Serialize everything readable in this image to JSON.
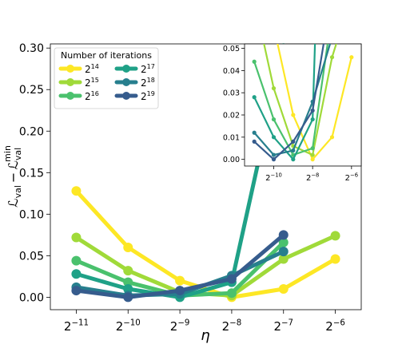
{
  "chart_data": [
    {
      "type": "line",
      "title": "",
      "xlabel": "η",
      "ylabel_main": "ℒ",
      "ylabel_main_sub": "val",
      "ylabel_minus": "−",
      "ylabel_second": "ℒ",
      "ylabel_second_sub": "val",
      "ylabel_second_sup": "min",
      "x_exponents": [
        -11,
        -10,
        -9,
        -8,
        -7,
        -6
      ],
      "x_tick_base": "2",
      "x_tick_exps": [
        "−11",
        "−10",
        "−9",
        "−8",
        "−7",
        "−6"
      ],
      "xlim": [
        -11.5,
        -5.5
      ],
      "ylim": [
        -0.015,
        0.305
      ],
      "yticks": [
        0.0,
        0.05,
        0.1,
        0.15,
        0.2,
        0.25,
        0.3
      ],
      "ytick_labels": [
        "0.00",
        "0.05",
        "0.10",
        "0.15",
        "0.20",
        "0.25",
        "0.30"
      ],
      "legend": {
        "title": "Number of iterations",
        "placement": "top-left"
      },
      "series": [
        {
          "label_base": "2",
          "label_exp": "14",
          "color": "#fde725",
          "x": [
            -11,
            -10,
            -9,
            -8,
            -7,
            -6
          ],
          "values": [
            0.128,
            0.06,
            0.02,
            0.0,
            0.01,
            0.046
          ]
        },
        {
          "label_base": "2",
          "label_exp": "15",
          "color": "#a0da39",
          "x": [
            -11,
            -10,
            -9,
            -8,
            -7,
            -6
          ],
          "values": [
            0.072,
            0.032,
            0.006,
            0.002,
            0.046,
            0.074
          ]
        },
        {
          "label_base": "2",
          "label_exp": "16",
          "color": "#4ac16d",
          "x": [
            -11,
            -10,
            -9,
            -8,
            -7
          ],
          "values": [
            0.044,
            0.018,
            0.002,
            0.005,
            0.066
          ]
        },
        {
          "label_base": "2",
          "label_exp": "17",
          "color": "#1fa187",
          "x": [
            -11,
            -10,
            -9,
            -8,
            -7
          ],
          "values": [
            0.028,
            0.01,
            0.0,
            0.018,
            0.3
          ]
        },
        {
          "label_base": "2",
          "label_exp": "18",
          "color": "#277f8e",
          "x": [
            -11,
            -10,
            -9,
            -8,
            -7
          ],
          "values": [
            0.012,
            0.002,
            0.004,
            0.026,
            0.055
          ]
        },
        {
          "label_base": "2",
          "label_exp": "19",
          "color": "#365c8d",
          "x": [
            -11,
            -10,
            -9,
            -8,
            -7
          ],
          "values": [
            0.008,
            0.0,
            0.008,
            0.022,
            0.075
          ]
        }
      ]
    },
    {
      "type": "line",
      "title": "",
      "inset": true,
      "x_exponents": [
        -10,
        -8,
        -6
      ],
      "x_tick_base": "2",
      "x_tick_exps": [
        "−10",
        "−8",
        "−6"
      ],
      "xlim": [
        -11.5,
        -5.5
      ],
      "ylim": [
        -0.003,
        0.052
      ],
      "yticks": [
        0.0,
        0.01,
        0.02,
        0.03,
        0.04,
        0.05
      ],
      "ytick_labels": [
        "0.00",
        "0.01",
        "0.02",
        "0.03",
        "0.04",
        "0.05"
      ]
    }
  ]
}
